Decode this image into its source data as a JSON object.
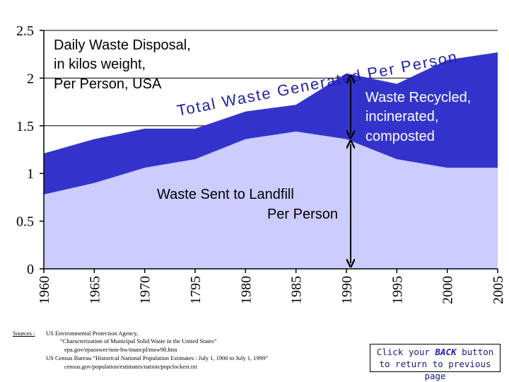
{
  "chart_data": {
    "type": "area",
    "title": "Daily Waste Disposal, in kilos weight, Per Person, USA",
    "title_lines": [
      "Daily Waste Disposal,",
      "in kilos weight,",
      "Per Person, USA"
    ],
    "categories": [
      "1960",
      "1965",
      "1970",
      "1795",
      "1980",
      "1985",
      "1990",
      "1995",
      "2000",
      "2005"
    ],
    "series": [
      {
        "name": "Waste Sent to Landfill Per Person",
        "values": [
          0.78,
          0.9,
          1.06,
          1.15,
          1.36,
          1.44,
          1.36,
          1.15,
          1.06,
          1.06
        ],
        "color": "#ccccff"
      },
      {
        "name": "Total Waste Generated Per Person",
        "values": [
          1.21,
          1.36,
          1.47,
          1.47,
          1.65,
          1.72,
          2.05,
          1.94,
          2.19,
          2.27
        ],
        "color": "#3333cc"
      }
    ],
    "ylim": [
      0,
      2.5
    ],
    "yticks": [
      "0",
      "0.5",
      "1",
      "1.5",
      "2",
      "2.5"
    ],
    "ytick_values": [
      0,
      0.5,
      1,
      1.5,
      2,
      2.5
    ],
    "annotations": {
      "total_label": "Total Waste Generated Per Person",
      "recycled_lines": [
        "Waste Recycled,",
        "incinerated,",
        "composted"
      ],
      "landfill_lines": [
        "Waste Sent to Landfill",
        "Per Person"
      ]
    }
  },
  "sources": {
    "label": "Sources :",
    "lines": [
      "US Environmental Protection Agency,",
      "“Characterization of Municipal Solid Waste in the United States”",
      "epa.gov/epaoswer/non-hw/muncpl/msw98.htm",
      "US Census Bureau “Historical National Population Estimates : July 1, 1900 to July 1, 1999”",
      "census.gov/population/estimates/nation/popclockest.txt"
    ]
  },
  "back_note": {
    "pre": "Click your ",
    "key": "BACK",
    "post": " button",
    "line2": "to return to previous page"
  }
}
